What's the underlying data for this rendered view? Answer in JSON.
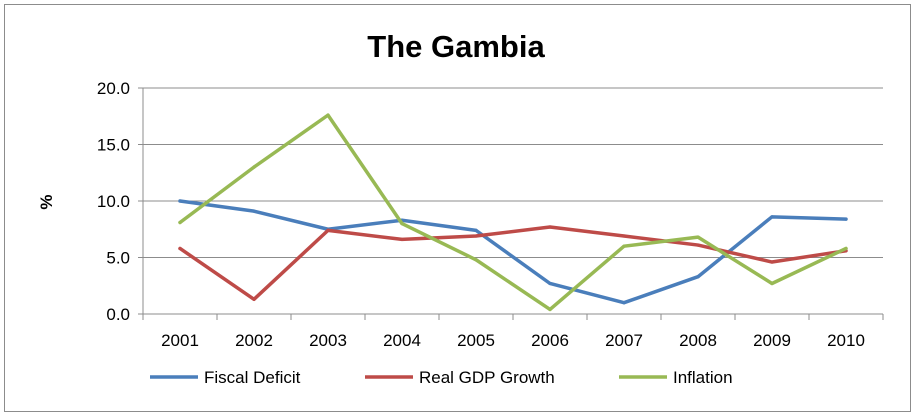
{
  "chart_data": {
    "type": "line",
    "title": "The Gambia",
    "xlabel": "",
    "ylabel": "%",
    "categories": [
      "2001",
      "2002",
      "2003",
      "2004",
      "2005",
      "2006",
      "2007",
      "2008",
      "2009",
      "2010"
    ],
    "ylim": [
      0,
      20
    ],
    "yticks": [
      "0.0",
      "5.0",
      "10.0",
      "15.0",
      "20.0"
    ],
    "grid": true,
    "legend_position": "bottom",
    "series": [
      {
        "name": "Fiscal Deficit",
        "color": "#4a7ebb",
        "values": [
          10.0,
          9.1,
          7.5,
          8.3,
          7.4,
          2.7,
          1.0,
          3.3,
          8.6,
          8.4
        ]
      },
      {
        "name": "Real GDP Growth",
        "color": "#be4b48",
        "values": [
          5.8,
          1.3,
          7.4,
          6.6,
          6.9,
          7.7,
          6.9,
          6.1,
          4.6,
          5.6
        ]
      },
      {
        "name": "Inflation",
        "color": "#98b954",
        "values": [
          8.1,
          13.0,
          17.6,
          8.0,
          4.8,
          0.4,
          6.0,
          6.8,
          2.7,
          5.8
        ]
      }
    ]
  }
}
